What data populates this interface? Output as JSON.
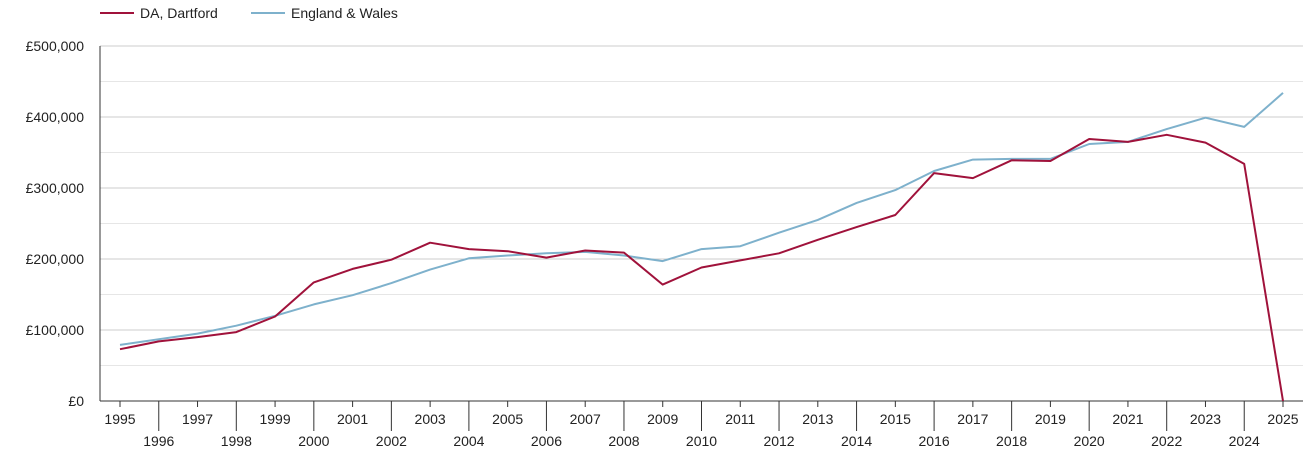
{
  "chart_data": {
    "type": "line",
    "title": "",
    "xlabel": "",
    "ylabel": "",
    "legend_position": "top-left",
    "grid": true,
    "x": [
      1995,
      1996,
      1997,
      1998,
      1999,
      2000,
      2001,
      2002,
      2003,
      2004,
      2005,
      2006,
      2007,
      2008,
      2009,
      2010,
      2011,
      2012,
      2013,
      2014,
      2015,
      2016,
      2017,
      2018,
      2019,
      2020,
      2021,
      2022,
      2023,
      2024,
      2025
    ],
    "xlim": [
      1995,
      2025
    ],
    "ylim": [
      0,
      500000
    ],
    "y_ticks": [
      0,
      100000,
      200000,
      300000,
      400000,
      500000
    ],
    "y_tick_labels": [
      "£0",
      "£100,000",
      "£200,000",
      "£300,000",
      "£400,000",
      "£500,000"
    ],
    "x_tick_labels": [
      "1995",
      "1996",
      "1997",
      "1998",
      "1999",
      "2000",
      "2001",
      "2002",
      "2003",
      "2004",
      "2005",
      "2006",
      "2007",
      "2008",
      "2009",
      "2010",
      "2011",
      "2012",
      "2013",
      "2014",
      "2015",
      "2016",
      "2017",
      "2018",
      "2019",
      "2020",
      "2021",
      "2022",
      "2023",
      "2024",
      "2025"
    ],
    "series": [
      {
        "name": "DA, Dartford",
        "color": "#a0123b",
        "values": [
          73000,
          84000,
          90000,
          97000,
          119000,
          167000,
          186000,
          199000,
          223000,
          214000,
          211000,
          202000,
          212000,
          209000,
          164000,
          188000,
          198000,
          208000,
          227000,
          245000,
          262000,
          321000,
          314000,
          339000,
          338000,
          369000,
          365000,
          375000,
          364000,
          334000,
          0
        ]
      },
      {
        "name": "England & Wales",
        "color": "#7eb1cc",
        "values": [
          79000,
          87000,
          95000,
          106000,
          120000,
          136000,
          149000,
          166000,
          185000,
          201000,
          205000,
          208000,
          210000,
          205000,
          197000,
          214000,
          218000,
          237000,
          255000,
          279000,
          297000,
          324000,
          340000,
          341000,
          341000,
          362000,
          365000,
          383000,
          399000,
          386000,
          434000
        ]
      }
    ]
  }
}
